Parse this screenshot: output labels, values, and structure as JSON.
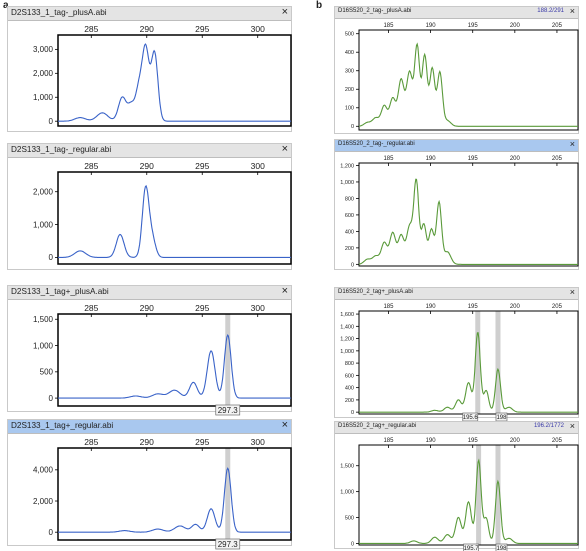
{
  "panel_labels": {
    "a": "a",
    "b": "b"
  },
  "colors": {
    "left_trace": "#3a63c8",
    "right_trace": "#5a9a3a",
    "highlight": "#cfcfcf",
    "title_bg": "#e4e4e4",
    "title_selected_bg": "#a9c8ef"
  },
  "windows": [
    {
      "title": "D2S133_1_tag-_plusA.abi",
      "close": "×",
      "selected": false
    },
    {
      "title": "D2S133_1_tag-_regular.abi",
      "close": "×",
      "selected": false
    },
    {
      "title": "D2S133_1_tag+_plusA.abi",
      "close": "×",
      "selected": false,
      "marker": "297.3"
    },
    {
      "title": "D2S133_1_tag+_regular.abi",
      "close": "×",
      "selected": true,
      "marker": "297.3"
    },
    {
      "title": "D16S520_2_tag-_plusA.abi",
      "close": "×",
      "selected": false,
      "coord": "188.2/291"
    },
    {
      "title": "D16S520_2_tag-_regular.abi",
      "close": "×",
      "selected": true
    },
    {
      "title": "D16S520_2_tag+_plusA.abi",
      "close": "×",
      "selected": false,
      "markers": [
        "195.6",
        "198"
      ]
    },
    {
      "title": "D16S520_2_tag+_regular.abi",
      "close": "×",
      "selected": false,
      "coord": "196.2/1772",
      "markers": [
        "195.7",
        "198"
      ]
    }
  ],
  "chart_data": [
    {
      "type": "line",
      "title": "D2S133_1_tag-_plusA.abi",
      "xlim": [
        282,
        303
      ],
      "ylim": [
        -200,
        3600
      ],
      "xticks": [
        "285",
        "290",
        "295",
        "300"
      ],
      "yticks": [
        "0",
        "1,000",
        "2,000",
        "3,000"
      ],
      "peaks": [
        [
          284,
          150,
          0.5
        ],
        [
          286,
          350,
          0.5
        ],
        [
          287.8,
          1000,
          0.35
        ],
        [
          288.6,
          650,
          0.3
        ],
        [
          289.3,
          1350,
          0.3
        ],
        [
          289.9,
          2950,
          0.3
        ],
        [
          290.7,
          2850,
          0.3
        ]
      ]
    },
    {
      "type": "line",
      "title": "D2S133_1_tag-_regular.abi",
      "xlim": [
        282,
        303
      ],
      "ylim": [
        -200,
        2600
      ],
      "xticks": [
        "285",
        "290",
        "295",
        "300"
      ],
      "yticks": [
        "0",
        "1,000",
        "2,000"
      ],
      "peaks": [
        [
          284,
          200,
          0.5
        ],
        [
          287.6,
          700,
          0.35
        ],
        [
          289.9,
          2100,
          0.3
        ],
        [
          290.5,
          550,
          0.3
        ]
      ]
    },
    {
      "type": "line",
      "title": "D2S133_1_tag+_plusA.abi",
      "xlim": [
        282,
        303
      ],
      "ylim": [
        -150,
        1600
      ],
      "xticks": [
        "285",
        "290",
        "295",
        "300"
      ],
      "yticks": [
        "0",
        "500",
        "1,000",
        "1,500"
      ],
      "peaks": [
        [
          289,
          40,
          0.5
        ],
        [
          291,
          80,
          0.5
        ],
        [
          292.5,
          150,
          0.5
        ],
        [
          294.2,
          300,
          0.35
        ],
        [
          295.8,
          900,
          0.35
        ],
        [
          297.3,
          1200,
          0.3
        ]
      ],
      "marker": 297.3
    },
    {
      "type": "line",
      "title": "D2S133_1_tag+_regular.abi",
      "xlim": [
        282,
        303
      ],
      "ylim": [
        -500,
        5400
      ],
      "xticks": [
        "285",
        "290",
        "295",
        "300"
      ],
      "yticks": [
        "0",
        "2,000",
        "4,000"
      ],
      "peaks": [
        [
          288,
          100,
          0.5
        ],
        [
          291,
          200,
          0.5
        ],
        [
          293,
          400,
          0.5
        ],
        [
          294.4,
          500,
          0.35
        ],
        [
          295.8,
          1500,
          0.35
        ],
        [
          297.3,
          4100,
          0.3
        ]
      ],
      "marker": 297.3
    },
    {
      "type": "line",
      "title": "D16S520_2_tag-_plusA.abi",
      "xlim": [
        181.5,
        207.5
      ],
      "ylim": [
        -20,
        520
      ],
      "xticks": [
        "185",
        "190",
        "195",
        "200",
        "205"
      ],
      "yticks": [
        "0",
        "100",
        "200",
        "300",
        "400",
        "500"
      ],
      "peaks": [
        [
          182.5,
          20,
          0.4
        ],
        [
          183.5,
          45,
          0.4
        ],
        [
          184.5,
          110,
          0.35
        ],
        [
          185.5,
          150,
          0.35
        ],
        [
          186.5,
          250,
          0.35
        ],
        [
          187.5,
          290,
          0.35
        ],
        [
          188.4,
          430,
          0.3
        ],
        [
          189.3,
          380,
          0.3
        ],
        [
          190.2,
          310,
          0.3
        ],
        [
          191.1,
          290,
          0.3
        ],
        [
          192,
          30,
          0.4
        ]
      ]
    },
    {
      "type": "line",
      "title": "D16S520_2_tag-_regular.abi",
      "xlim": [
        181.5,
        207.5
      ],
      "ylim": [
        -20,
        1230
      ],
      "xticks": [
        "185",
        "190",
        "195",
        "200",
        "205"
      ],
      "yticks": [
        "0",
        "200",
        "400",
        "600",
        "800",
        "1,000",
        "1,200"
      ],
      "peaks": [
        [
          182.5,
          60,
          0.4
        ],
        [
          183.5,
          100,
          0.4
        ],
        [
          184.5,
          260,
          0.35
        ],
        [
          185.5,
          380,
          0.35
        ],
        [
          186.5,
          350,
          0.35
        ],
        [
          187.5,
          450,
          0.35
        ],
        [
          188.3,
          1000,
          0.3
        ],
        [
          189.2,
          480,
          0.3
        ],
        [
          190.1,
          420,
          0.3
        ],
        [
          191,
          750,
          0.3
        ],
        [
          192,
          150,
          0.4
        ]
      ]
    },
    {
      "type": "line",
      "title": "D16S520_2_tag+_plusA.abi",
      "xlim": [
        181.5,
        207.5
      ],
      "ylim": [
        -30,
        1650
      ],
      "xticks": [
        "185",
        "190",
        "195",
        "200",
        "205"
      ],
      "yticks": [
        "0",
        "200",
        "400",
        "600",
        "800",
        "1,000",
        "1,200",
        "1,400",
        "1,600"
      ],
      "peaks": [
        [
          190.5,
          30,
          0.4
        ],
        [
          192,
          80,
          0.4
        ],
        [
          193.3,
          200,
          0.35
        ],
        [
          194.5,
          480,
          0.35
        ],
        [
          195.6,
          1300,
          0.3
        ],
        [
          196.6,
          350,
          0.3
        ],
        [
          198,
          700,
          0.3
        ],
        [
          199.3,
          80,
          0.4
        ]
      ],
      "markers": [
        195.6,
        198
      ]
    },
    {
      "type": "line",
      "title": "D16S520_2_tag+_regular.abi",
      "xlim": [
        181.5,
        207.5
      ],
      "ylim": [
        -30,
        1900
      ],
      "xticks": [
        "185",
        "190",
        "195",
        "200",
        "205"
      ],
      "yticks": [
        "0",
        "500",
        "1,000",
        "1,500"
      ],
      "peaks": [
        [
          188,
          50,
          0.4
        ],
        [
          190.5,
          120,
          0.4
        ],
        [
          192,
          170,
          0.4
        ],
        [
          193.3,
          500,
          0.35
        ],
        [
          194.5,
          800,
          0.35
        ],
        [
          195.7,
          1600,
          0.3
        ],
        [
          196.6,
          480,
          0.3
        ],
        [
          198,
          1200,
          0.3
        ],
        [
          199.3,
          100,
          0.4
        ]
      ],
      "markers": [
        195.7,
        198
      ]
    }
  ]
}
